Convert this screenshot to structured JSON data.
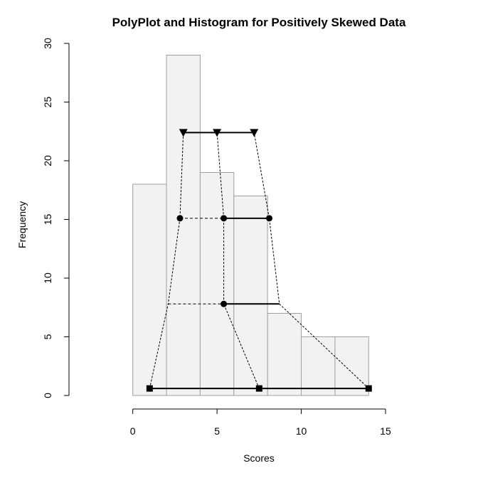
{
  "chart_data": {
    "type": "bar",
    "title": "PolyPlot and Histogram for Positively Skewed Data",
    "xlabel": "Scores",
    "ylabel": "Frequency",
    "xlim": [
      -7.5,
      15
    ],
    "ylim": [
      0,
      30
    ],
    "grid": false,
    "x_ticks": [
      0,
      5,
      10,
      15
    ],
    "y_ticks": [
      0,
      5,
      10,
      15,
      20,
      25,
      30
    ],
    "histogram": {
      "bin_edges": [
        0,
        2,
        4,
        6,
        8,
        10,
        12,
        14
      ],
      "counts": [
        18,
        29,
        19,
        17,
        7,
        5,
        5
      ],
      "fill_color": "#f2f2f2",
      "border_color": "#a0a0a0"
    },
    "polyplot": {
      "line_color": "#000000",
      "levels": [
        {
          "y": 0.6,
          "marker": "square",
          "points": [
            1.0,
            7.5,
            14.0
          ],
          "solid_segment": [
            1.0,
            14.0
          ]
        },
        {
          "y": 7.8,
          "marker": "circle",
          "points": [
            5.4
          ],
          "dashed_segment": [
            2.1,
            5.4
          ],
          "solid_segment": [
            5.4,
            8.7
          ]
        },
        {
          "y": 15.1,
          "marker": "circle",
          "points": [
            2.8,
            5.4,
            8.1
          ],
          "dashed_segment": [
            2.8,
            5.4
          ],
          "solid_segment": [
            5.4,
            8.1
          ]
        },
        {
          "y": 22.4,
          "marker": "triangle-down",
          "points": [
            3.0,
            5.0,
            7.2
          ],
          "solid_segment": [
            3.0,
            7.2
          ]
        }
      ],
      "connectors": [
        [
          [
            1.0,
            0.6
          ],
          [
            2.1,
            7.8
          ],
          [
            2.8,
            15.1
          ],
          [
            3.0,
            22.4
          ]
        ],
        [
          [
            7.5,
            0.6
          ],
          [
            5.4,
            7.8
          ],
          [
            5.4,
            15.1
          ],
          [
            5.0,
            22.4
          ]
        ],
        [
          [
            14.0,
            0.6
          ],
          [
            8.7,
            7.8
          ],
          [
            8.1,
            15.1
          ],
          [
            7.2,
            22.4
          ]
        ]
      ]
    }
  }
}
